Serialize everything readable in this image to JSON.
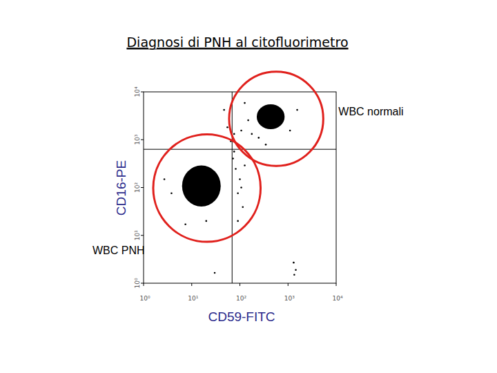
{
  "chart_data": {
    "type": "scatter",
    "title": "Diagnosi di PNH al citofluorimetro",
    "x_label": "CD59-FITC",
    "y_label": "CD16-PE",
    "log": true,
    "xlim": [
      1,
      10000
    ],
    "ylim": [
      1,
      10000
    ],
    "xticks": [
      {
        "value": 1,
        "label": "10⁰"
      },
      {
        "value": 10,
        "label": "10¹"
      },
      {
        "value": 100,
        "label": "10²"
      },
      {
        "value": 1000,
        "label": "10³"
      },
      {
        "value": 10000,
        "label": "10⁴"
      }
    ],
    "yticks": [
      {
        "value": 1,
        "label": "10⁰"
      },
      {
        "value": 10,
        "label": "10¹"
      },
      {
        "value": 100,
        "label": "10²"
      },
      {
        "value": 1000,
        "label": "10³"
      },
      {
        "value": 10000,
        "label": "10⁴"
      }
    ],
    "quadrant": {
      "x": 69,
      "y": 630
    },
    "clusters": [
      {
        "name": "WBC normali",
        "x_range": [
          224,
          850
        ],
        "y_range": [
          1660,
          5500
        ],
        "color": "#000000"
      },
      {
        "name": "WBC PNH",
        "x_range": [
          6.3,
          40
        ],
        "y_range": [
          40,
          290
        ],
        "color": "#000000"
      }
    ],
    "series": [
      {
        "color": "#000000",
        "marker": "dot",
        "x": [
          65,
          76,
          91,
          107,
          72,
          82,
          100,
          91,
          115,
          76,
          126,
          55,
          149,
          177,
          47,
          246,
          345,
          1100,
          1550,
          126,
          91,
          20,
          7.4,
          3.8,
          2.7,
          1310,
          1450,
          1350,
          30,
          107
        ],
        "values": [
          930,
          1320,
          790,
          1550,
          405,
          245,
          149,
          76,
          39,
          565,
          290,
          1820,
          2550,
          1320,
          4200,
          1100,
          790,
          1550,
          4200,
          5850,
          20,
          20,
          17,
          76,
          149,
          2.7,
          1.9,
          1.5,
          1.65,
          100
        ]
      }
    ]
  }
}
